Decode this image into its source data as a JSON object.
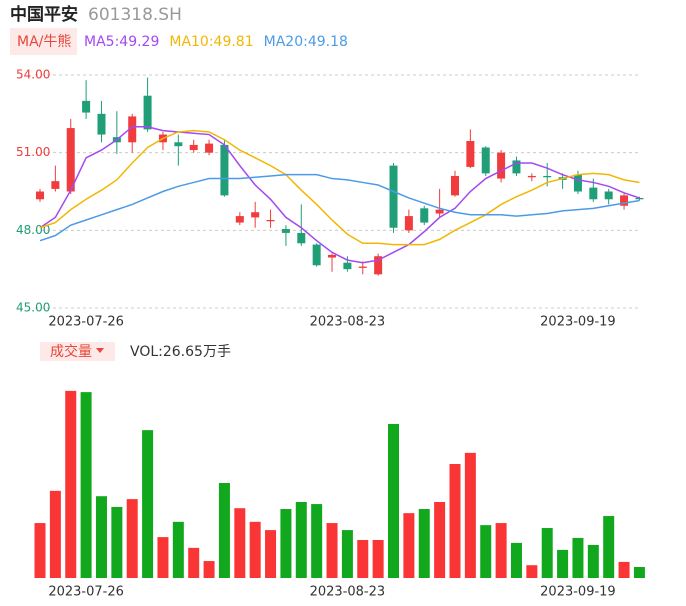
{
  "header": {
    "name": "中国平安",
    "code": "601318.SH",
    "ma_button": "MA/牛熊",
    "vol_button": "成交量"
  },
  "chart_data": [
    {
      "type": "candlestick",
      "categories": [
        null,
        null,
        null,
        "2023-07-26",
        null,
        null,
        null,
        null,
        null,
        null,
        null,
        null,
        null,
        null,
        null,
        null,
        null,
        null,
        null,
        null,
        "2023-08-23",
        null,
        null,
        null,
        null,
        null,
        null,
        null,
        null,
        null,
        null,
        null,
        null,
        null,
        null,
        "2023-09-19",
        null,
        null,
        null,
        null
      ],
      "open": [
        49.2,
        49.6,
        49.5,
        53.0,
        52.5,
        51.6,
        51.4,
        53.2,
        51.4,
        51.4,
        51.1,
        51.0,
        51.3,
        48.3,
        48.5,
        48.35,
        48.05,
        47.9,
        47.45,
        46.95,
        46.75,
        46.55,
        46.3,
        50.5,
        48.0,
        48.85,
        48.65,
        49.35,
        50.45,
        51.2,
        50.0,
        50.7,
        50.05,
        50.1,
        50.05,
        50.15,
        49.65,
        49.5,
        48.95,
        49.25
      ],
      "high": [
        49.6,
        50.5,
        52.3,
        53.8,
        53.0,
        52.6,
        52.5,
        53.9,
        51.8,
        51.7,
        51.5,
        51.5,
        51.5,
        48.7,
        49.1,
        48.8,
        48.2,
        49.0,
        47.5,
        47.1,
        47.0,
        46.8,
        47.1,
        50.6,
        48.8,
        48.95,
        49.6,
        50.3,
        51.9,
        51.25,
        51.1,
        50.85,
        50.2,
        50.6,
        50.2,
        50.3,
        50.0,
        49.6,
        49.45,
        49.3
      ],
      "low": [
        49.1,
        49.5,
        49.4,
        52.3,
        51.4,
        50.95,
        51.0,
        51.8,
        51.1,
        50.5,
        51.0,
        50.9,
        49.3,
        48.2,
        48.1,
        48.1,
        47.4,
        47.4,
        46.6,
        46.4,
        46.4,
        46.3,
        46.25,
        47.9,
        47.9,
        48.2,
        48.5,
        49.3,
        50.4,
        50.1,
        49.85,
        50.1,
        49.9,
        49.7,
        49.6,
        49.4,
        49.1,
        49.0,
        48.8,
        49.15
      ],
      "close": [
        49.5,
        49.9,
        51.95,
        52.55,
        51.7,
        51.4,
        52.4,
        51.9,
        51.7,
        51.25,
        51.3,
        51.35,
        49.35,
        48.55,
        48.7,
        48.4,
        47.9,
        47.5,
        46.65,
        47.05,
        46.5,
        46.6,
        47.0,
        48.1,
        48.55,
        48.3,
        48.8,
        50.1,
        51.45,
        50.2,
        51.0,
        50.2,
        50.1,
        50.05,
        49.95,
        49.5,
        49.2,
        49.2,
        49.35,
        49.2
      ],
      "up_color": "#f03c3c",
      "down_color": "#1f9e78",
      "series": [
        {
          "name": "MA5:49.29",
          "color": "#a448f2",
          "values": [
            48.1,
            48.5,
            49.55,
            50.8,
            51.1,
            51.5,
            52.0,
            52.0,
            51.85,
            51.8,
            51.75,
            51.7,
            51.3,
            50.5,
            49.75,
            49.2,
            48.5,
            48.1,
            47.6,
            47.15,
            46.85,
            46.75,
            46.85,
            47.15,
            47.45,
            47.95,
            48.5,
            48.85,
            49.5,
            50.0,
            50.3,
            50.6,
            50.6,
            50.4,
            50.15,
            49.95,
            49.85,
            49.7,
            49.45,
            49.25
          ]
        },
        {
          "name": "MA10:49.81",
          "color": "#f2b705",
          "values": [
            48.1,
            48.3,
            48.8,
            49.2,
            49.55,
            49.95,
            50.6,
            51.2,
            51.55,
            51.8,
            51.85,
            51.8,
            51.5,
            51.1,
            50.8,
            50.5,
            50.15,
            49.55,
            49.0,
            48.4,
            47.85,
            47.5,
            47.5,
            47.45,
            47.45,
            47.45,
            47.65,
            48.0,
            48.3,
            48.6,
            49.0,
            49.3,
            49.55,
            49.85,
            50.0,
            50.15,
            50.2,
            50.15,
            49.95,
            49.85
          ]
        },
        {
          "name": "MA20:49.18",
          "color": "#4c9be6",
          "values": [
            47.6,
            47.8,
            48.2,
            48.4,
            48.6,
            48.8,
            49.0,
            49.25,
            49.5,
            49.7,
            49.85,
            50.0,
            50.0,
            50.0,
            50.05,
            50.1,
            50.15,
            50.15,
            50.15,
            50.0,
            49.95,
            49.85,
            49.75,
            49.5,
            49.25,
            49.05,
            48.85,
            48.7,
            48.6,
            48.6,
            48.6,
            48.55,
            48.6,
            48.65,
            48.75,
            48.8,
            48.85,
            48.95,
            49.05,
            49.15
          ]
        }
      ],
      "ylim": [
        45,
        54
      ],
      "yticks": [
        {
          "value": 54,
          "label": "54.00",
          "color": "#f03c3c"
        },
        {
          "value": 51,
          "label": "51.00",
          "color": "#f03c3c"
        },
        {
          "value": 48,
          "label": "48.00",
          "color": "#1f9e78"
        },
        {
          "value": 45,
          "label": "45.00",
          "color": "#1f9e78"
        }
      ],
      "grid": true
    },
    {
      "type": "bar",
      "title": "VOL:26.65万手",
      "categories": [
        null,
        null,
        null,
        "2023-07-26",
        null,
        null,
        null,
        null,
        null,
        null,
        null,
        null,
        null,
        null,
        null,
        null,
        null,
        null,
        null,
        null,
        "2023-08-23",
        null,
        null,
        null,
        null,
        null,
        null,
        null,
        null,
        null,
        null,
        null,
        null,
        null,
        null,
        "2023-09-19",
        null,
        null,
        null,
        null
      ],
      "values": [
        133,
        211,
        453,
        450,
        198,
        172,
        191,
        358,
        99,
        136,
        73,
        41,
        230,
        169,
        136,
        116,
        167,
        184,
        179,
        133,
        116,
        92,
        92,
        373,
        157,
        167,
        184,
        276,
        303,
        128,
        133,
        85,
        31,
        121,
        68,
        97,
        80,
        150,
        39,
        26.65
      ],
      "up_color": "#fa3535",
      "down_color": "#11a81e",
      "ylim": [
        0,
        460
      ]
    }
  ]
}
